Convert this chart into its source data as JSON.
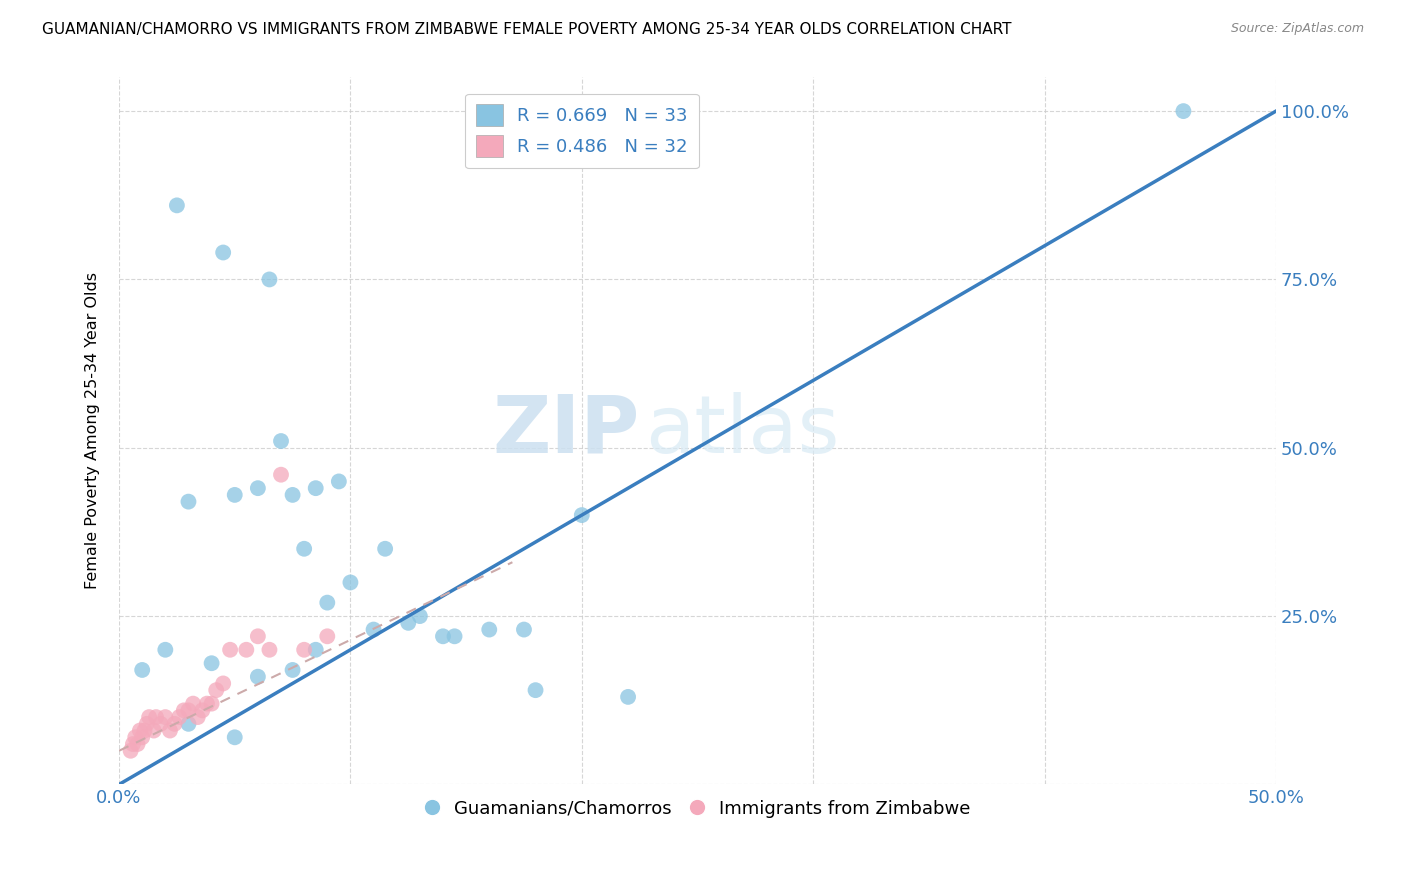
{
  "title": "GUAMANIAN/CHAMORRO VS IMMIGRANTS FROM ZIMBABWE FEMALE POVERTY AMONG 25-34 YEAR OLDS CORRELATION CHART",
  "source": "Source: ZipAtlas.com",
  "ylabel": "Female Poverty Among 25-34 Year Olds",
  "xlim": [
    0.0,
    0.5
  ],
  "ylim": [
    0.0,
    1.05
  ],
  "xtick_positions": [
    0.0,
    0.1,
    0.2,
    0.3,
    0.4,
    0.5
  ],
  "xtick_labels": [
    "0.0%",
    "",
    "",
    "",
    "",
    "50.0%"
  ],
  "ytick_positions": [
    0.0,
    0.25,
    0.5,
    0.75,
    1.0
  ],
  "ytick_labels": [
    "",
    "25.0%",
    "50.0%",
    "75.0%",
    "100.0%"
  ],
  "blue_color": "#89c4e1",
  "pink_color": "#f4a9bb",
  "blue_line_color": "#3a7ebf",
  "pink_line_color": "#e0607e",
  "blue_R": 0.669,
  "blue_N": 33,
  "pink_R": 0.486,
  "pink_N": 32,
  "legend_label_blue": "Guamanians/Chamorros",
  "legend_label_pink": "Immigrants from Zimbabwe",
  "blue_scatter_x": [
    0.025,
    0.045,
    0.065,
    0.03,
    0.05,
    0.07,
    0.08,
    0.1,
    0.09,
    0.11,
    0.125,
    0.14,
    0.16,
    0.18,
    0.2,
    0.06,
    0.075,
    0.085,
    0.095,
    0.115,
    0.13,
    0.145,
    0.175,
    0.22,
    0.03,
    0.05,
    0.075,
    0.46,
    0.085,
    0.02,
    0.04,
    0.01,
    0.06
  ],
  "blue_scatter_y": [
    0.86,
    0.79,
    0.75,
    0.42,
    0.43,
    0.51,
    0.35,
    0.3,
    0.27,
    0.23,
    0.24,
    0.22,
    0.23,
    0.14,
    0.4,
    0.44,
    0.43,
    0.44,
    0.45,
    0.35,
    0.25,
    0.22,
    0.23,
    0.13,
    0.09,
    0.07,
    0.17,
    1.0,
    0.2,
    0.2,
    0.18,
    0.17,
    0.16
  ],
  "pink_scatter_x": [
    0.005,
    0.006,
    0.007,
    0.008,
    0.009,
    0.01,
    0.011,
    0.012,
    0.013,
    0.015,
    0.016,
    0.018,
    0.02,
    0.022,
    0.024,
    0.026,
    0.028,
    0.03,
    0.032,
    0.034,
    0.036,
    0.038,
    0.04,
    0.042,
    0.045,
    0.048,
    0.055,
    0.06,
    0.065,
    0.07,
    0.08,
    0.09
  ],
  "pink_scatter_y": [
    0.05,
    0.06,
    0.07,
    0.06,
    0.08,
    0.07,
    0.08,
    0.09,
    0.1,
    0.08,
    0.1,
    0.09,
    0.1,
    0.08,
    0.09,
    0.1,
    0.11,
    0.11,
    0.12,
    0.1,
    0.11,
    0.12,
    0.12,
    0.14,
    0.15,
    0.2,
    0.2,
    0.22,
    0.2,
    0.46,
    0.2,
    0.22
  ],
  "blue_regline_x": [
    0.0,
    0.5
  ],
  "blue_regline_y": [
    0.0,
    1.0
  ],
  "pink_regline_x": [
    0.0,
    0.17
  ],
  "pink_regline_y": [
    0.05,
    0.33
  ],
  "watermark_zip": "ZIP",
  "watermark_atlas": "atlas",
  "background_color": "#ffffff",
  "grid_color": "#cccccc"
}
